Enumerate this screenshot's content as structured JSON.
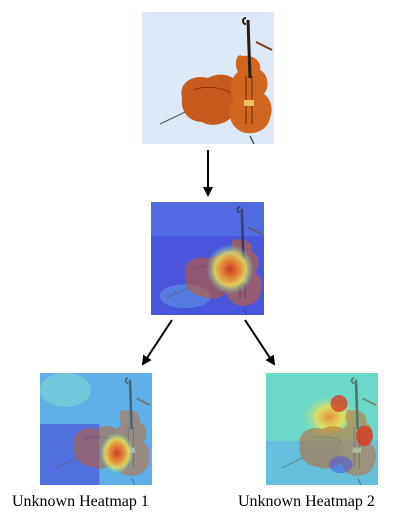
{
  "figure": {
    "top_image": {
      "subject": "cello",
      "background_color": "#dde9f6",
      "instrument_color": "#c4541c"
    },
    "middle_image": {
      "kind": "heatmap overlay",
      "colormap": [
        "#3b3fd6",
        "#4f86e6",
        "#5fd0c8",
        "#e8e05a",
        "#f08a2a",
        "#d9321e"
      ]
    },
    "bottom_images": [
      {
        "kind": "heatmap overlay",
        "caption": "Unknown Heatmap 1"
      },
      {
        "kind": "heatmap overlay",
        "caption": "Unknown Heatmap 2"
      }
    ],
    "arrows": [
      {
        "from": "top_image",
        "to": "middle_image"
      },
      {
        "from": "middle_image",
        "to": "bottom_images.0"
      },
      {
        "from": "middle_image",
        "to": "bottom_images.1"
      }
    ]
  }
}
